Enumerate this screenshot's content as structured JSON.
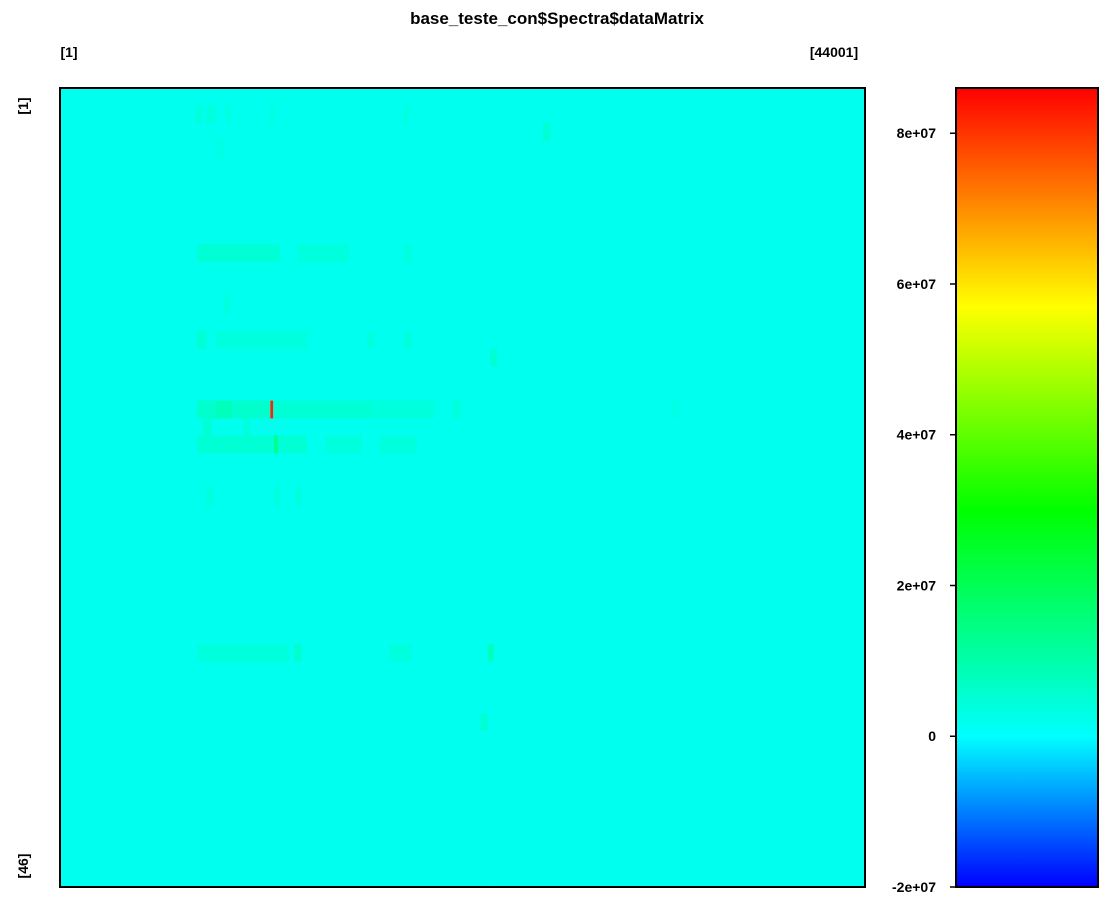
{
  "chart_data": {
    "type": "heatmap",
    "title": "base_teste_con$Spectra$dataMatrix",
    "col_first_label": "[1]",
    "col_last_label": "[44001]",
    "row_first_label": "[1]",
    "row_last_label": "[46]",
    "n_rows": 46,
    "n_cols": 44001,
    "background_value": 2000000,
    "value_range": [
      -20000000,
      86000000
    ],
    "colorbar": {
      "ticks": [
        -20000000,
        0,
        20000000,
        40000000,
        60000000,
        80000000
      ],
      "tick_labels": [
        "-2e+07",
        "0",
        "2e+07",
        "4e+07",
        "6e+07",
        "8e+07"
      ],
      "stops": [
        {
          "value": -20000000,
          "color": "#0000ff"
        },
        {
          "value": 0,
          "color": "#00ffff"
        },
        {
          "value": 30000000,
          "color": "#00ff00"
        },
        {
          "value": 57000000,
          "color": "#ffff00"
        },
        {
          "value": 86000000,
          "color": "#ff0000"
        }
      ]
    },
    "highlights": [
      {
        "row": 2,
        "col_start": 7400,
        "col_end": 7800,
        "value": 4000000
      },
      {
        "row": 2,
        "col_start": 8000,
        "col_end": 8500,
        "value": 4000000
      },
      {
        "row": 2,
        "col_start": 9100,
        "col_end": 9300,
        "value": 4000000
      },
      {
        "row": 2,
        "col_start": 11500,
        "col_end": 11700,
        "value": 4000000
      },
      {
        "row": 2,
        "col_start": 18800,
        "col_end": 19000,
        "value": 4000000
      },
      {
        "row": 3,
        "col_start": 26400,
        "col_end": 26800,
        "value": 5000000
      },
      {
        "row": 4,
        "col_start": 8500,
        "col_end": 9000,
        "value": 3000000
      },
      {
        "row": 10,
        "col_start": 7500,
        "col_end": 12000,
        "value": 5000000
      },
      {
        "row": 10,
        "col_start": 13000,
        "col_end": 15800,
        "value": 4000000
      },
      {
        "row": 10,
        "col_start": 18800,
        "col_end": 19200,
        "value": 4000000
      },
      {
        "row": 13,
        "col_start": 9000,
        "col_end": 9300,
        "value": 4000000
      },
      {
        "row": 15,
        "col_start": 7500,
        "col_end": 8000,
        "value": 5000000
      },
      {
        "row": 15,
        "col_start": 8500,
        "col_end": 13500,
        "value": 4000000
      },
      {
        "row": 15,
        "col_start": 16800,
        "col_end": 17200,
        "value": 4000000
      },
      {
        "row": 15,
        "col_start": 18800,
        "col_end": 19200,
        "value": 4000000
      },
      {
        "row": 16,
        "col_start": 23500,
        "col_end": 23900,
        "value": 5000000
      },
      {
        "row": 19,
        "col_start": 7500,
        "col_end": 8500,
        "value": 6000000
      },
      {
        "row": 19,
        "col_start": 8500,
        "col_end": 9400,
        "value": 8000000
      },
      {
        "row": 19,
        "col_start": 9400,
        "col_end": 11500,
        "value": 6000000
      },
      {
        "row": 19,
        "col_start": 11500,
        "col_end": 11650,
        "value": 82000000
      },
      {
        "row": 19,
        "col_start": 11700,
        "col_end": 17000,
        "value": 5000000
      },
      {
        "row": 19,
        "col_start": 17000,
        "col_end": 20500,
        "value": 4000000
      },
      {
        "row": 19,
        "col_start": 21500,
        "col_end": 21900,
        "value": 4000000
      },
      {
        "row": 19,
        "col_start": 33500,
        "col_end": 33900,
        "value": 3000000
      },
      {
        "row": 20,
        "col_start": 7800,
        "col_end": 8300,
        "value": 5000000
      },
      {
        "row": 20,
        "col_start": 10000,
        "col_end": 10400,
        "value": 4000000
      },
      {
        "row": 21,
        "col_start": 7500,
        "col_end": 13500,
        "value": 5000000
      },
      {
        "row": 21,
        "col_start": 11700,
        "col_end": 11900,
        "value": 14000000
      },
      {
        "row": 21,
        "col_start": 14500,
        "col_end": 16500,
        "value": 4000000
      },
      {
        "row": 21,
        "col_start": 17500,
        "col_end": 19500,
        "value": 4000000
      },
      {
        "row": 24,
        "col_start": 8000,
        "col_end": 8400,
        "value": 4000000
      },
      {
        "row": 24,
        "col_start": 11700,
        "col_end": 12000,
        "value": 4000000
      },
      {
        "row": 24,
        "col_start": 12900,
        "col_end": 13200,
        "value": 4000000
      },
      {
        "row": 33,
        "col_start": 7500,
        "col_end": 12500,
        "value": 4000000
      },
      {
        "row": 33,
        "col_start": 12800,
        "col_end": 13200,
        "value": 6000000
      },
      {
        "row": 33,
        "col_start": 18000,
        "col_end": 19200,
        "value": 4000000
      },
      {
        "row": 33,
        "col_start": 23400,
        "col_end": 23700,
        "value": 8000000
      },
      {
        "row": 37,
        "col_start": 23000,
        "col_end": 23400,
        "value": 5000000
      }
    ],
    "vertical_lines": [
      {
        "col": 23400,
        "width": 60,
        "value": 500000
      }
    ]
  }
}
